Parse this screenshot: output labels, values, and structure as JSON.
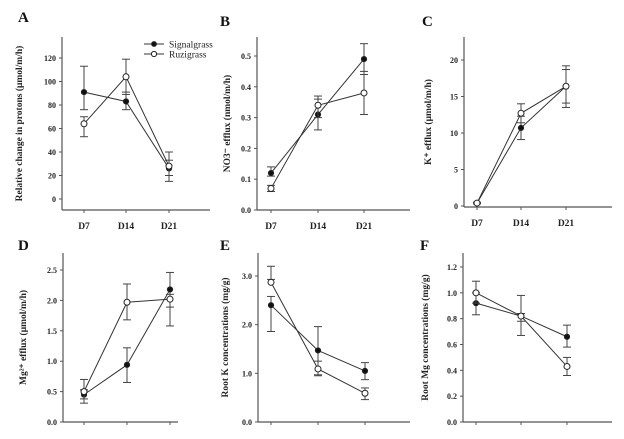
{
  "legend": {
    "items": [
      {
        "label": "Signalgrass",
        "marker": "filled-circle"
      },
      {
        "label": "Ruzigrass",
        "marker": "open-circle"
      }
    ],
    "placement": "top-right of panel A"
  },
  "chart_data": [
    {
      "panel": "A",
      "type": "line",
      "title": "",
      "xlabel": "",
      "ylabel": "Relative change in protons (μmol/m/h)",
      "categories": [
        "D7",
        "D14",
        "D21"
      ],
      "show_xticklabels": true,
      "ylim": [
        -10,
        138
      ],
      "yticks": [
        0,
        20,
        40,
        60,
        80,
        100,
        120
      ],
      "ytick_labels": [
        "0",
        "20",
        "40",
        "60",
        "80",
        "100",
        "120"
      ],
      "series": [
        {
          "name": "Signalgrass",
          "values": [
            91,
            83,
            26
          ],
          "err_low": [
            76,
            76,
            20
          ],
          "err_high": [
            113,
            91,
            33
          ]
        },
        {
          "name": "Ruzigrass",
          "values": [
            64,
            104,
            28
          ],
          "err_low": [
            53,
            89,
            15
          ],
          "err_high": [
            70,
            119,
            40
          ]
        }
      ]
    },
    {
      "panel": "B",
      "type": "line",
      "title": "",
      "xlabel": "",
      "ylabel": "NO3⁻ efflux (nmol/m/h)",
      "categories": [
        "D7",
        "D14",
        "D21"
      ],
      "show_xticklabels": true,
      "ylim": [
        0,
        0.56
      ],
      "yticks": [
        0.0,
        0.1,
        0.2,
        0.3,
        0.4,
        0.5
      ],
      "ytick_labels": [
        "0.0",
        "0.1",
        "0.2",
        "0.3",
        "0.4",
        "0.5"
      ],
      "series": [
        {
          "name": "Signalgrass",
          "values": [
            0.12,
            0.31,
            0.49
          ],
          "err_low": [
            0.11,
            0.26,
            0.44
          ],
          "err_high": [
            0.14,
            0.36,
            0.54
          ]
        },
        {
          "name": "Ruzigrass",
          "values": [
            0.07,
            0.34,
            0.38
          ],
          "err_low": [
            0.06,
            0.3,
            0.31
          ],
          "err_high": [
            0.08,
            0.37,
            0.45
          ]
        }
      ]
    },
    {
      "panel": "C",
      "type": "line",
      "title": "",
      "xlabel": "",
      "ylabel": "K⁺ efflux (μmol/m/h)",
      "categories": [
        "D7",
        "D14",
        "D21"
      ],
      "show_xticklabels": true,
      "ylim": [
        -0.5,
        23
      ],
      "yticks": [
        0,
        5,
        10,
        15,
        20
      ],
      "ytick_labels": [
        "0",
        "5",
        "10",
        "15",
        "20"
      ],
      "series": [
        {
          "name": "Signalgrass",
          "values": [
            0.4,
            10.7,
            16.4
          ],
          "err_low": [
            0.3,
            9.1,
            14.1
          ],
          "err_high": [
            0.5,
            12.3,
            18.7
          ]
        },
        {
          "name": "Ruzigrass",
          "values": [
            0.4,
            12.7,
            16.4
          ],
          "err_low": [
            0.3,
            11.4,
            13.5
          ],
          "err_high": [
            0.5,
            14.0,
            19.2
          ]
        }
      ]
    },
    {
      "panel": "D",
      "type": "line",
      "title": "",
      "xlabel": "",
      "ylabel": "Mg²⁺ efflux (μmol/m/h)",
      "categories": [
        "D7",
        "D14",
        "D21"
      ],
      "show_xticklabels": false,
      "ylim": [
        0,
        2.8
      ],
      "yticks": [
        0.0,
        0.5,
        1.0,
        1.5,
        2.0,
        2.5
      ],
      "ytick_labels": [
        "0.0",
        "0.5",
        "1.0",
        "1.5",
        "2.0",
        "2.5"
      ],
      "series": [
        {
          "name": "Signalgrass",
          "values": [
            0.45,
            0.94,
            2.18
          ],
          "err_low": [
            0.31,
            0.65,
            1.89
          ],
          "err_high": [
            0.53,
            1.22,
            2.46
          ]
        },
        {
          "name": "Ruzigrass",
          "values": [
            0.5,
            1.97,
            2.02
          ],
          "err_low": [
            0.38,
            1.68,
            1.58
          ],
          "err_high": [
            0.7,
            2.27,
            2.1
          ]
        }
      ]
    },
    {
      "panel": "E",
      "type": "line",
      "title": "",
      "xlabel": "",
      "ylabel": "Root K concentrations (mg/g)",
      "categories": [
        "D7",
        "D14",
        "D21"
      ],
      "show_xticklabels": false,
      "ylim": [
        0,
        3.5
      ],
      "yticks": [
        0.0,
        1.0,
        2.0,
        3.0
      ],
      "ytick_labels": [
        "0.0",
        "1.0",
        "2.0",
        "3.0"
      ],
      "series": [
        {
          "name": "Signalgrass",
          "values": [
            2.4,
            1.47,
            1.05
          ],
          "err_low": [
            1.86,
            0.97,
            0.87
          ],
          "err_high": [
            2.58,
            1.96,
            1.22
          ]
        },
        {
          "name": "Ruzigrass",
          "values": [
            2.87,
            1.09,
            0.59
          ],
          "err_low": [
            2.93,
            0.95,
            0.46
          ],
          "err_high": [
            3.2,
            1.25,
            0.7
          ]
        }
      ]
    },
    {
      "panel": "F",
      "type": "line",
      "title": "",
      "xlabel": "",
      "ylabel": "Root Mg concentrations (mg/g)",
      "categories": [
        "D7",
        "D14",
        "D21"
      ],
      "show_xticklabels": false,
      "ylim": [
        0,
        1.32
      ],
      "yticks": [
        0.0,
        0.2,
        0.4,
        0.6,
        0.8,
        1.0,
        1.2
      ],
      "ytick_labels": [
        "0.0",
        "0.2",
        "0.4",
        "0.6",
        "0.8",
        "1.0",
        "1.2"
      ],
      "series": [
        {
          "name": "Signalgrass",
          "values": [
            0.92,
            0.82,
            0.66
          ],
          "err_low": [
            0.83,
            0.67,
            0.58
          ],
          "err_high": [
            1.0,
            0.98,
            0.75
          ]
        },
        {
          "name": "Ruzigrass",
          "values": [
            1.0,
            0.82,
            0.43
          ],
          "err_low": [
            0.92,
            0.78,
            0.36
          ],
          "err_high": [
            1.09,
            0.84,
            0.5
          ]
        }
      ]
    }
  ]
}
